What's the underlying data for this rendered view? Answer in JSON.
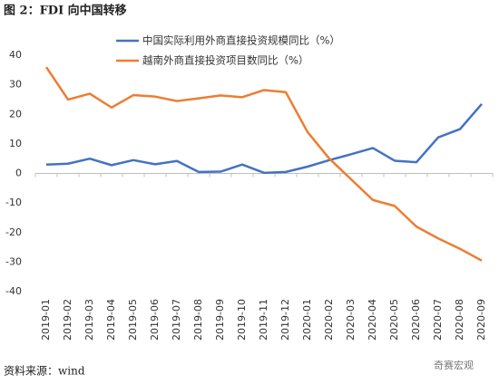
{
  "chart_data": {
    "type": "line",
    "title": "图 2：FDI 向中国转移",
    "source": "资料来源：wind",
    "watermark": "奇赛宏观",
    "categories": [
      "2019-01",
      "2019-02",
      "2019-03",
      "2019-04",
      "2019-05",
      "2019-06",
      "2019-07",
      "2019-08",
      "2019-09",
      "2019-10",
      "2019-11",
      "2019-12",
      "2020-01",
      "2020-02",
      "2020-03",
      "2020-04",
      "2020-05",
      "2020-06",
      "2020-07",
      "2020-08",
      "2020-09"
    ],
    "series": [
      {
        "name": "中国实际利用外商直接投资规模同比（%）",
        "color": "#4472c4",
        "values": [
          3,
          3.3,
          5,
          2.8,
          4.5,
          3.1,
          4.2,
          0.5,
          0.6,
          3,
          0.2,
          0.5,
          2.3,
          4.5,
          6.5,
          8.6,
          4.3,
          3.8,
          12.2,
          15,
          23.5
        ]
      },
      {
        "name": "越南外商直接投资项目数同比（%）",
        "color": "#ed7d31",
        "values": [
          36,
          25,
          27,
          22.3,
          26.5,
          26,
          24.5,
          25.4,
          26.4,
          25.8,
          28.2,
          27.5,
          14,
          5,
          -2,
          -9,
          -11,
          -18,
          -22,
          -25.5,
          -29.5
        ]
      }
    ],
    "ylim": [
      -40,
      40
    ],
    "yticks": [
      -40,
      -30,
      -20,
      -10,
      0,
      10,
      20,
      30,
      40
    ],
    "grid": false,
    "legend": "top"
  }
}
